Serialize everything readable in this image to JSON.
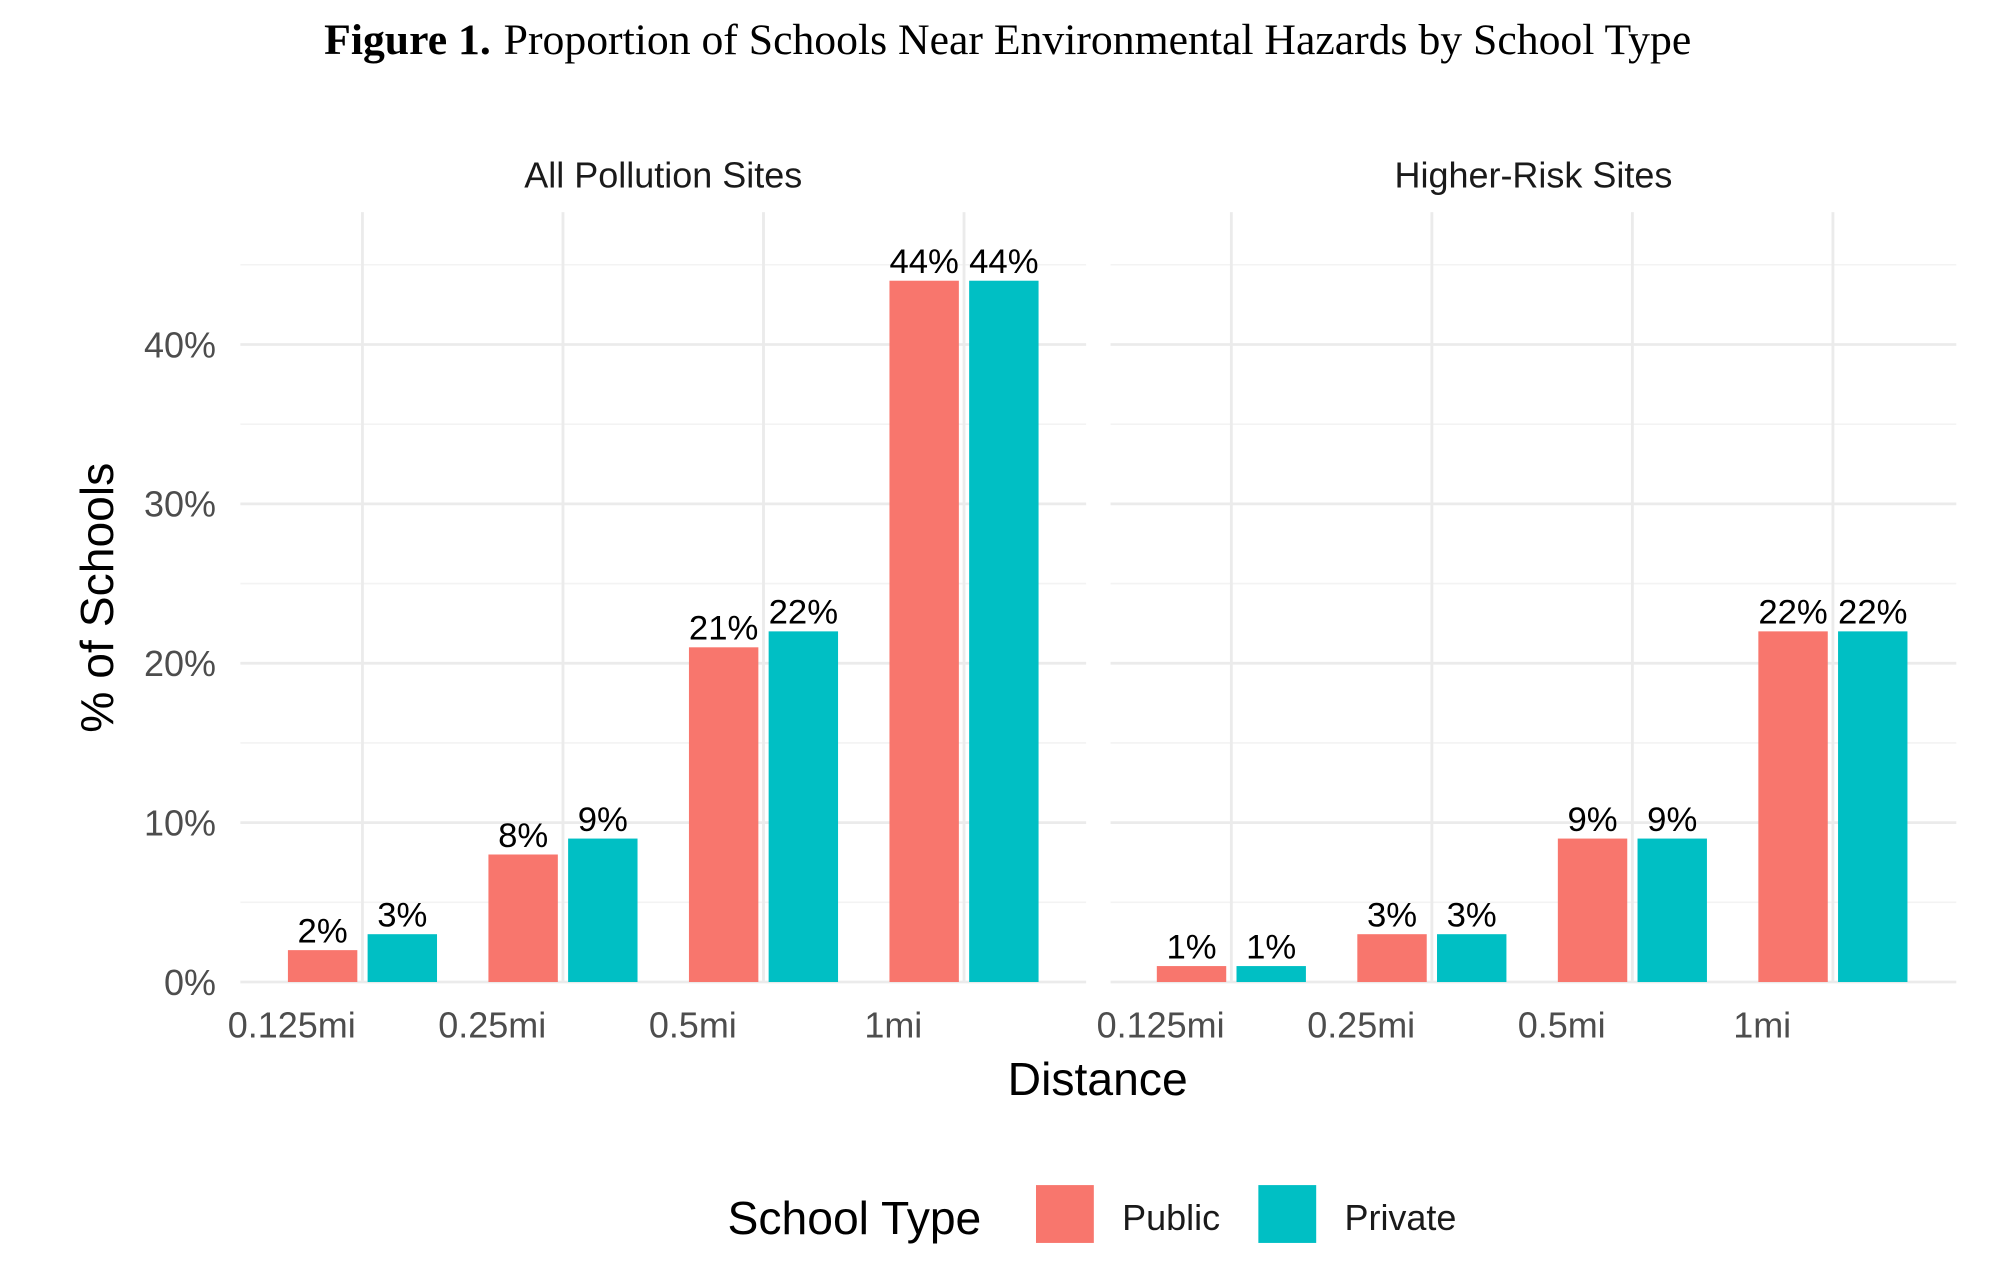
{
  "figure": {
    "label": "Figure 1.",
    "title": "Proportion of Schools Near Environmental Hazards by School Type"
  },
  "chart_data": {
    "type": "bar",
    "layout": "faceted grouped bar, two panels",
    "title": "Figure 1. Proportion of Schools Near Environmental Hazards by School Type",
    "xlabel": "Distance",
    "ylabel": "% of Schools",
    "ylim": [
      0,
      47
    ],
    "y_ticks": [
      "0%",
      "10%",
      "20%",
      "30%",
      "40%"
    ],
    "y_tick_values": [
      0,
      10,
      20,
      30,
      40
    ],
    "grid": true,
    "categories": [
      "0.125mi",
      "0.25mi",
      "0.5mi",
      "1mi"
    ],
    "legend": {
      "title": "School Type",
      "position": "bottom"
    },
    "series_meta": [
      {
        "name": "Public",
        "color": "#F8766D"
      },
      {
        "name": "Private",
        "color": "#00BFC4"
      }
    ],
    "panels": [
      {
        "title": "All Pollution Sites",
        "series": [
          {
            "name": "Public",
            "values": [
              2,
              8,
              21,
              44
            ],
            "labels": [
              "2%",
              "8%",
              "21%",
              "44%"
            ]
          },
          {
            "name": "Private",
            "values": [
              3,
              9,
              22,
              44
            ],
            "labels": [
              "3%",
              "9%",
              "22%",
              "44%"
            ]
          }
        ]
      },
      {
        "title": "Higher-Risk Sites",
        "series": [
          {
            "name": "Public",
            "values": [
              1,
              3,
              9,
              22
            ],
            "labels": [
              "1%",
              "3%",
              "9%",
              "22%"
            ]
          },
          {
            "name": "Private",
            "values": [
              1,
              3,
              9,
              22
            ],
            "labels": [
              "1%",
              "3%",
              "9%",
              "22%"
            ]
          }
        ]
      }
    ]
  }
}
